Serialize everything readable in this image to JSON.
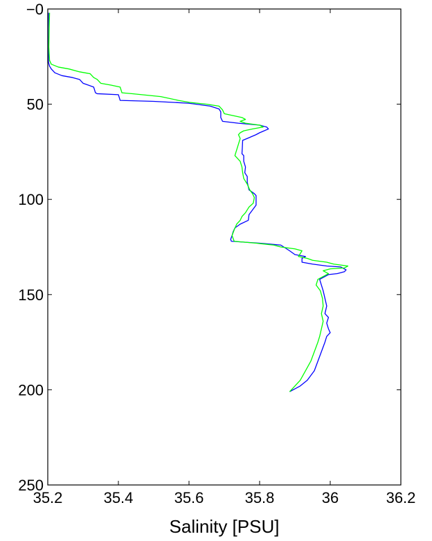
{
  "chart_data": {
    "type": "line",
    "title": "",
    "xlabel": "Salinity [PSU]",
    "ylabel": "",
    "xlim": [
      35.2,
      36.2
    ],
    "ylim": [
      0,
      250
    ],
    "y_reversed": true,
    "grid": false,
    "legend": "none",
    "x_ticks": [
      35.2,
      35.4,
      35.6,
      35.8,
      36,
      36.2
    ],
    "x_tick_labels": [
      "35.2",
      "35.4",
      "35.6",
      "35.8",
      "36",
      "36.2"
    ],
    "y_ticks": [
      0,
      50,
      100,
      150,
      200,
      250
    ],
    "y_tick_labels": [
      "−0",
      "50",
      "100",
      "150",
      "200",
      "250"
    ],
    "series": [
      {
        "color": "#0000ff",
        "points": [
          [
            35.202,
            2
          ],
          [
            35.201,
            10
          ],
          [
            35.201,
            20
          ],
          [
            35.202,
            28
          ],
          [
            35.205,
            30
          ],
          [
            35.21,
            31.5
          ],
          [
            35.22,
            33.5
          ],
          [
            35.24,
            35
          ],
          [
            35.27,
            36
          ],
          [
            35.29,
            37
          ],
          [
            35.3,
            39
          ],
          [
            35.33,
            41
          ],
          [
            35.335,
            44
          ],
          [
            35.34,
            44.5
          ],
          [
            35.4,
            45
          ],
          [
            35.405,
            48
          ],
          [
            35.5,
            48.5
          ],
          [
            35.6,
            49.5
          ],
          [
            35.66,
            51
          ],
          [
            35.685,
            52.5
          ],
          [
            35.69,
            54
          ],
          [
            35.69,
            57
          ],
          [
            35.695,
            59
          ],
          [
            35.74,
            60
          ],
          [
            35.77,
            60.5
          ],
          [
            35.8,
            61
          ],
          [
            35.82,
            62
          ],
          [
            35.825,
            63
          ],
          [
            35.8,
            65
          ],
          [
            35.79,
            66
          ],
          [
            35.765,
            68
          ],
          [
            35.752,
            69
          ],
          [
            35.751,
            73
          ],
          [
            35.75,
            76
          ],
          [
            35.755,
            77
          ],
          [
            35.755,
            80
          ],
          [
            35.76,
            83
          ],
          [
            35.758,
            86
          ],
          [
            35.765,
            88
          ],
          [
            35.765,
            91
          ],
          [
            35.77,
            95
          ],
          [
            35.785,
            97
          ],
          [
            35.79,
            98
          ],
          [
            35.79,
            100
          ],
          [
            35.79,
            103
          ],
          [
            35.778,
            106
          ],
          [
            35.77,
            108
          ],
          [
            35.768,
            111
          ],
          [
            35.745,
            113
          ],
          [
            35.73,
            115
          ],
          [
            35.725,
            117
          ],
          [
            35.722,
            119
          ],
          [
            35.718,
            121
          ],
          [
            35.72,
            122
          ],
          [
            35.8,
            123
          ],
          [
            35.86,
            124
          ],
          [
            35.885,
            127
          ],
          [
            35.9,
            129
          ],
          [
            35.93,
            130
          ],
          [
            35.92,
            131
          ],
          [
            35.92,
            133
          ],
          [
            35.95,
            134
          ],
          [
            35.99,
            135
          ],
          [
            36.03,
            135.5
          ],
          [
            36.045,
            137
          ],
          [
            36.04,
            138
          ],
          [
            36.02,
            139
          ],
          [
            35.995,
            139.5
          ],
          [
            35.985,
            140.5
          ],
          [
            35.97,
            142
          ],
          [
            35.975,
            145
          ],
          [
            35.98,
            148
          ],
          [
            35.985,
            152
          ],
          [
            35.99,
            156
          ],
          [
            35.985,
            160
          ],
          [
            35.995,
            162
          ],
          [
            35.99,
            165
          ],
          [
            35.995,
            168
          ],
          [
            36.0,
            170
          ],
          [
            35.99,
            172
          ],
          [
            35.985,
            175
          ],
          [
            35.975,
            180
          ],
          [
            35.965,
            185
          ],
          [
            35.955,
            190
          ],
          [
            35.935,
            195
          ],
          [
            35.915,
            198
          ],
          [
            35.895,
            200
          ],
          [
            35.885,
            201
          ]
        ]
      },
      {
        "color": "#00ff00",
        "points": [
          [
            35.205,
            2
          ],
          [
            35.204,
            10
          ],
          [
            35.203,
            20
          ],
          [
            35.205,
            27
          ],
          [
            35.21,
            29
          ],
          [
            35.23,
            30.5
          ],
          [
            35.26,
            31.5
          ],
          [
            35.29,
            33
          ],
          [
            35.32,
            34
          ],
          [
            35.33,
            36
          ],
          [
            35.34,
            37
          ],
          [
            35.35,
            39
          ],
          [
            35.38,
            40
          ],
          [
            35.405,
            41
          ],
          [
            35.41,
            44
          ],
          [
            35.44,
            44.5
          ],
          [
            35.52,
            46
          ],
          [
            35.57,
            48
          ],
          [
            35.6,
            49
          ],
          [
            35.65,
            50
          ],
          [
            35.685,
            51
          ],
          [
            35.695,
            53
          ],
          [
            35.7,
            55
          ],
          [
            35.75,
            57
          ],
          [
            35.76,
            58
          ],
          [
            35.745,
            59
          ],
          [
            35.76,
            60
          ],
          [
            35.8,
            61
          ],
          [
            35.81,
            62
          ],
          [
            35.78,
            63
          ],
          [
            35.755,
            64
          ],
          [
            35.745,
            65
          ],
          [
            35.74,
            66
          ],
          [
            35.745,
            68
          ],
          [
            35.74,
            71
          ],
          [
            35.735,
            74
          ],
          [
            35.73,
            77
          ],
          [
            35.745,
            80
          ],
          [
            35.75,
            83
          ],
          [
            35.752,
            86
          ],
          [
            35.755,
            89
          ],
          [
            35.765,
            92
          ],
          [
            35.772,
            95
          ],
          [
            35.78,
            97
          ],
          [
            35.785,
            99
          ],
          [
            35.782,
            102
          ],
          [
            35.77,
            104
          ],
          [
            35.76,
            107
          ],
          [
            35.75,
            109
          ],
          [
            35.745,
            111
          ],
          [
            35.735,
            113
          ],
          [
            35.728,
            116
          ],
          [
            35.722,
            119
          ],
          [
            35.728,
            122
          ],
          [
            35.79,
            123
          ],
          [
            35.84,
            124
          ],
          [
            35.86,
            125
          ],
          [
            35.9,
            126
          ],
          [
            35.92,
            127
          ],
          [
            35.91,
            130
          ],
          [
            35.935,
            131
          ],
          [
            35.95,
            132
          ],
          [
            35.99,
            133
          ],
          [
            36.01,
            134
          ],
          [
            36.05,
            135
          ],
          [
            36.04,
            136
          ],
          [
            36.0,
            136.5
          ],
          [
            35.98,
            137.5
          ],
          [
            35.995,
            139
          ],
          [
            35.985,
            140
          ],
          [
            35.965,
            142
          ],
          [
            35.96,
            145
          ],
          [
            35.972,
            148
          ],
          [
            35.978,
            152
          ],
          [
            35.98,
            156
          ],
          [
            35.975,
            160
          ],
          [
            35.98,
            164
          ],
          [
            35.975,
            168
          ],
          [
            35.97,
            172
          ],
          [
            35.965,
            175
          ],
          [
            35.955,
            180
          ],
          [
            35.945,
            185
          ],
          [
            35.93,
            190
          ],
          [
            35.915,
            195
          ],
          [
            35.9,
            198
          ],
          [
            35.89,
            200
          ],
          [
            35.885,
            201
          ]
        ]
      }
    ]
  }
}
